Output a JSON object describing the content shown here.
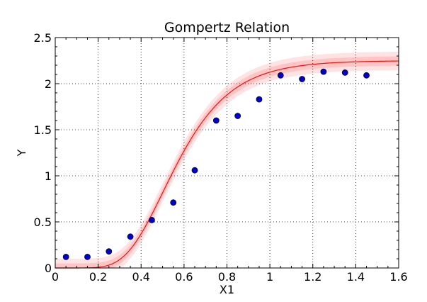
{
  "chart_data": {
    "type": "scatter",
    "title": "Gompertz Relation",
    "xlabel": "X1",
    "ylabel": "Y",
    "xlim": [
      0,
      1.6
    ],
    "ylim": [
      0,
      2.5
    ],
    "x_ticks": [
      "0",
      "0.2",
      "0.4",
      "0.6",
      "0.8",
      "1",
      "1.2",
      "1.4",
      "1.6"
    ],
    "y_ticks": [
      "0",
      "0.5",
      "1",
      "1.5",
      "2",
      "2.5"
    ],
    "grid": true,
    "series": [
      {
        "kind": "points",
        "x": [
          0.05,
          0.15,
          0.25,
          0.35,
          0.45,
          0.55,
          0.65,
          0.75,
          0.85,
          0.95,
          1.05,
          1.15,
          1.25,
          1.35,
          1.45
        ],
        "y": [
          0.12,
          0.12,
          0.18,
          0.34,
          0.52,
          0.71,
          1.06,
          1.6,
          1.65,
          1.83,
          2.09,
          2.05,
          2.13,
          2.12,
          2.09
        ]
      },
      {
        "kind": "fit",
        "model": "Y = a*exp(-b*exp(-c*X1))",
        "params": {
          "a": 2.25,
          "b": 18.0,
          "c": 5.75
        },
        "band_inner": 0.05,
        "band_outer": 0.1
      }
    ],
    "colors": {
      "points_fill": "#0000cc",
      "points_edge": "#000033",
      "fit_line": "#ee1111",
      "band_inner": "#ffc4c4",
      "band_outer": "#ffe3e3",
      "grid": "#000000"
    }
  }
}
